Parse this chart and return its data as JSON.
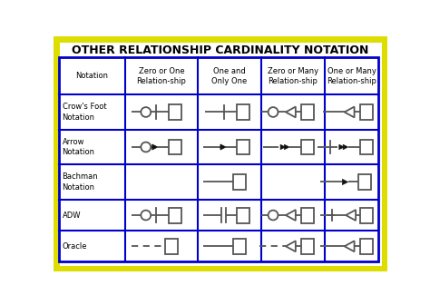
{
  "title": "OTHER RELATIONSHIP CARDINALITY NOTATION",
  "bg_color": "#ffffff",
  "outer_border_color": "#dddd00",
  "inner_border_color": "#0000cc",
  "col_headers": [
    "Notation",
    "Zero or One\nRelation-ship",
    "One and\nOnly One",
    "Zero or Many\nRelation-ship",
    "One or Many\nRelation-ship"
  ],
  "row_headers": [
    "Crow's Foot\nNotation",
    "Arrow\nNotation",
    "Bachman\nNotation",
    "ADW",
    "Oracle"
  ],
  "line_color": "#555555",
  "symbol_color": "#555555",
  "arrow_color": "#111111"
}
